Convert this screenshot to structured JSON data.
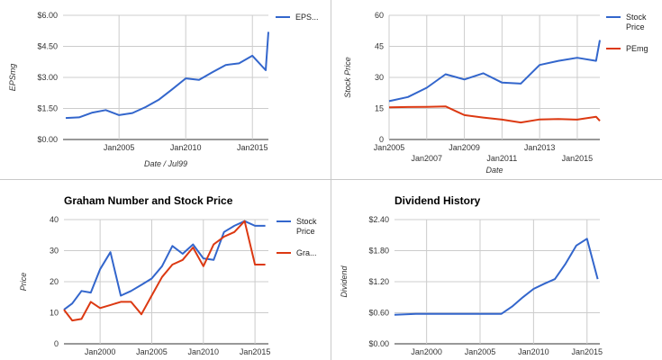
{
  "chart_data": [
    {
      "id": "eps",
      "type": "line",
      "title": "",
      "xlabel": "Date / Jul99",
      "ylabel": "EPSmg",
      "xlim": [
        2000.8,
        2016.2
      ],
      "ylim": [
        0,
        6
      ],
      "y_ticks": [
        {
          "value": 0,
          "label": "$0.00"
        },
        {
          "value": 1.5,
          "label": "$1.50"
        },
        {
          "value": 3,
          "label": "$3.00"
        },
        {
          "value": 4.5,
          "label": "$4.50"
        },
        {
          "value": 6,
          "label": "$6.00"
        }
      ],
      "x_ticks": [
        {
          "value": 2005,
          "label": "Jan2005",
          "row": 0
        },
        {
          "value": 2010,
          "label": "Jan2010",
          "row": 0
        },
        {
          "value": 2015,
          "label": "Jan2015",
          "row": 0
        }
      ],
      "grid": true,
      "legend": "right",
      "series": [
        {
          "name": "EPS...",
          "color": "#3366cc",
          "x": [
            2001,
            2002,
            2003,
            2004,
            2005,
            2006,
            2007,
            2008,
            2009,
            2010,
            2011,
            2012,
            2013,
            2014,
            2015,
            2016
          ],
          "values": [
            1.04,
            1.07,
            1.3,
            1.42,
            1.18,
            1.28,
            1.57,
            1.93,
            2.43,
            2.95,
            2.88,
            3.25,
            3.6,
            3.68,
            4.05,
            3.35
          ]
        }
      ],
      "extra_point": {
        "x": 2016.2,
        "y": 5.2
      }
    },
    {
      "id": "pe",
      "type": "line",
      "title": "",
      "xlabel": "Date",
      "ylabel": "Stock Price",
      "xlim": [
        2005,
        2016.2
      ],
      "ylim": [
        0,
        60
      ],
      "y_ticks": [
        {
          "value": 0,
          "label": "0"
        },
        {
          "value": 15,
          "label": "15"
        },
        {
          "value": 30,
          "label": "30"
        },
        {
          "value": 45,
          "label": "45"
        },
        {
          "value": 60,
          "label": "60"
        }
      ],
      "x_ticks": [
        {
          "value": 2005,
          "label": "Jan2005",
          "row": 0
        },
        {
          "value": 2007,
          "label": "Jan2007",
          "row": 1
        },
        {
          "value": 2009,
          "label": "Jan2009",
          "row": 0
        },
        {
          "value": 2011,
          "label": "Jan2011",
          "row": 1
        },
        {
          "value": 2013,
          "label": "Jan2013",
          "row": 0
        },
        {
          "value": 2015,
          "label": "Jan2015",
          "row": 1
        }
      ],
      "grid": true,
      "legend": "right",
      "series": [
        {
          "name": "Stock Price",
          "color": "#3366cc",
          "x": [
            2005,
            2006,
            2007,
            2008,
            2009,
            2010,
            2011,
            2012,
            2013,
            2014,
            2015,
            2016,
            2016.2
          ],
          "values": [
            18.5,
            20.5,
            25,
            31.5,
            29,
            32,
            27.5,
            27,
            36,
            38,
            39.5,
            38,
            48
          ]
        },
        {
          "name": "PEmg",
          "color": "#dc3912",
          "x": [
            2005,
            2006,
            2007,
            2008,
            2009,
            2010,
            2011,
            2012,
            2013,
            2014,
            2015,
            2016,
            2016.2
          ],
          "values": [
            15.5,
            15.7,
            15.8,
            16,
            11.8,
            10.6,
            9.6,
            8.2,
            9.7,
            9.9,
            9.6,
            11,
            9
          ]
        }
      ]
    },
    {
      "id": "graham",
      "type": "line",
      "title": "Graham Number and Stock Price",
      "xlabel": "",
      "ylabel": "Price",
      "xlim": [
        1996.5,
        2016.3
      ],
      "ylim": [
        0,
        40
      ],
      "y_ticks": [
        {
          "value": 0,
          "label": "0"
        },
        {
          "value": 10,
          "label": "10"
        },
        {
          "value": 20,
          "label": "20"
        },
        {
          "value": 30,
          "label": "30"
        },
        {
          "value": 40,
          "label": "40"
        }
      ],
      "x_ticks": [
        {
          "value": 2000,
          "label": "Jan2000",
          "row": 0
        },
        {
          "value": 2005,
          "label": "Jan2005",
          "row": 0
        },
        {
          "value": 2010,
          "label": "Jan2010",
          "row": 0
        },
        {
          "value": 2015,
          "label": "Jan2015",
          "row": 0
        }
      ],
      "grid": true,
      "legend": "right",
      "series": [
        {
          "name": "Stock Price",
          "color": "#3366cc",
          "x": [
            1996.5,
            1997.3,
            1998.2,
            1999.1,
            2000,
            2001,
            2002,
            2003,
            2004,
            2005,
            2006,
            2007,
            2008,
            2009,
            2010,
            2011,
            2012,
            2013,
            2014,
            2015,
            2016
          ],
          "values": [
            11,
            13,
            17,
            16.5,
            24,
            29.5,
            15.5,
            17,
            19,
            21,
            25,
            31.5,
            29,
            32,
            27.5,
            27,
            36,
            38,
            39.5,
            38,
            38
          ]
        },
        {
          "name": "Gra...",
          "color": "#dc3912",
          "x": [
            1996.5,
            1997.3,
            1998.2,
            1999.1,
            2000,
            2001,
            2002,
            2003,
            2004,
            2005,
            2006,
            2007,
            2008,
            2009,
            2010,
            2011,
            2012,
            2013,
            2014,
            2015,
            2016
          ],
          "values": [
            11,
            7.5,
            8,
            13.5,
            11.5,
            12.5,
            13.5,
            13.5,
            9.5,
            15.5,
            21.5,
            25.5,
            27,
            31,
            25,
            32,
            34.5,
            36,
            39.5,
            25.5,
            25.5
          ]
        }
      ]
    },
    {
      "id": "dividend",
      "type": "line",
      "title": "Dividend History",
      "xlabel": "",
      "ylabel": "Dividend",
      "xlim": [
        1997,
        2016.2
      ],
      "ylim": [
        0,
        2.4
      ],
      "y_ticks": [
        {
          "value": 0,
          "label": "$0.00"
        },
        {
          "value": 0.6,
          "label": "$0.60"
        },
        {
          "value": 1.2,
          "label": "$1.20"
        },
        {
          "value": 1.8,
          "label": "$1.80"
        },
        {
          "value": 2.4,
          "label": "$2.40"
        }
      ],
      "x_ticks": [
        {
          "value": 2000,
          "label": "Jan2000",
          "row": 0
        },
        {
          "value": 2005,
          "label": "Jan2005",
          "row": 0
        },
        {
          "value": 2010,
          "label": "Jan2010",
          "row": 0
        },
        {
          "value": 2015,
          "label": "Jan2015",
          "row": 0
        }
      ],
      "grid": true,
      "legend": "none",
      "series": [
        {
          "name": "",
          "color": "#3366cc",
          "x": [
            1997,
            1998,
            1999,
            2000,
            2001,
            2002,
            2003,
            2004,
            2005,
            2006,
            2007,
            2008,
            2009,
            2010,
            2011,
            2012,
            2013,
            2014,
            2015,
            2016
          ],
          "values": [
            0.56,
            0.57,
            0.58,
            0.58,
            0.58,
            0.58,
            0.58,
            0.58,
            0.58,
            0.58,
            0.58,
            0.72,
            0.9,
            1.06,
            1.16,
            1.25,
            1.55,
            1.9,
            2.03,
            1.25
          ]
        }
      ]
    }
  ]
}
